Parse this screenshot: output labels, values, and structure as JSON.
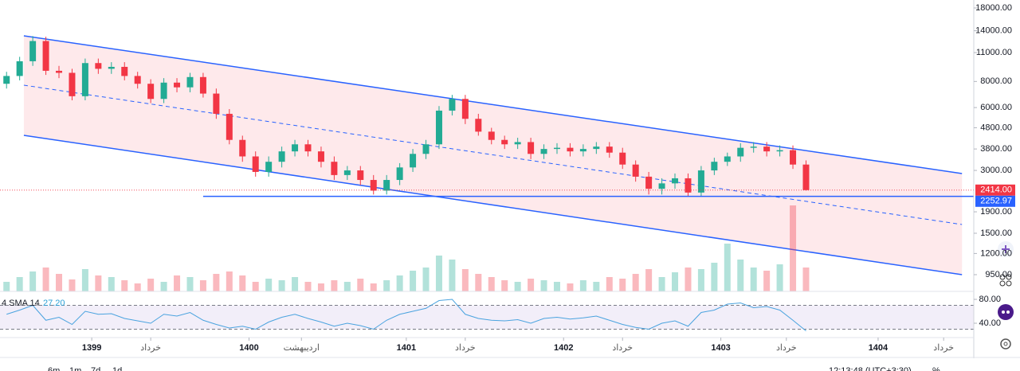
{
  "chart_data": {
    "type": "candlestick",
    "x": [
      -6.5,
      -5.5,
      -4.5,
      -3.5,
      -2.5,
      -1.5,
      -0.5,
      0.5,
      1.5,
      2.5,
      3.5,
      4.5,
      5.5,
      6.5,
      7.5,
      8.5,
      9.5,
      10.5,
      11.5,
      12.5,
      13.5,
      14.5,
      15.5,
      16.5,
      17.5,
      18.5,
      19.5,
      20.5,
      21.5,
      22.5,
      23.5,
      24.5,
      25.5,
      26.5,
      27.5,
      28.5,
      29.5,
      30.5,
      31.5,
      32.5,
      33.5,
      34.5,
      35.5,
      36.5,
      37.5,
      38.5,
      39.5,
      40.5,
      41.5,
      42.5,
      43.5,
      44.5,
      45.5,
      46.5,
      47.5,
      48.5,
      49.5,
      50.5,
      51.5,
      52.5,
      53.5,
      54.5
    ],
    "open": [
      7800,
      8500,
      10000,
      12500,
      9000,
      8800,
      6800,
      9800,
      9200,
      9400,
      8500,
      7800,
      6600,
      7900,
      7500,
      8400,
      7000,
      5600,
      4200,
      3500,
      2950,
      3300,
      3700,
      4000,
      3700,
      3300,
      2850,
      3000,
      2700,
      2400,
      2700,
      3100,
      3600,
      4000,
      5800,
      6600,
      5300,
      4600,
      4200,
      4000,
      4100,
      3600,
      3800,
      3850,
      3700,
      3800,
      3900,
      3650,
      3200,
      2800,
      2450,
      2600,
      2750,
      2350,
      3000,
      3300,
      3500,
      3850,
      3900,
      3700,
      3750,
      3200
    ],
    "high": [
      8900,
      10500,
      13200,
      13100,
      9500,
      9200,
      10300,
      10300,
      9900,
      9900,
      8900,
      8200,
      8300,
      8300,
      8800,
      8800,
      7400,
      5900,
      4400,
      3700,
      3500,
      3900,
      4200,
      4200,
      3900,
      3500,
      3150,
      3150,
      2850,
      2850,
      3250,
      3800,
      4200,
      6100,
      6900,
      6900,
      5600,
      4800,
      4400,
      4300,
      4300,
      4000,
      4050,
      4050,
      4000,
      4100,
      4100,
      3850,
      3350,
      2950,
      2750,
      2900,
      2900,
      3150,
      3450,
      3650,
      4050,
      4100,
      4100,
      3950,
      3950,
      3350
    ],
    "low": [
      7400,
      8100,
      9500,
      8600,
      8300,
      6500,
      6500,
      8700,
      8700,
      8100,
      7400,
      6300,
      6300,
      7100,
      7100,
      6700,
      5300,
      4000,
      3300,
      2800,
      2800,
      3100,
      3500,
      3500,
      3100,
      2700,
      2700,
      2550,
      2300,
      2300,
      2550,
      2950,
      3400,
      3800,
      5500,
      5000,
      4400,
      4000,
      3800,
      3800,
      3400,
      3400,
      3600,
      3500,
      3500,
      3600,
      3450,
      3050,
      2650,
      2300,
      2300,
      2450,
      2250,
      2250,
      2850,
      3150,
      3300,
      3650,
      3500,
      3500,
      3050,
      2400
    ],
    "close": [
      8500,
      10000,
      12500,
      9000,
      8800,
      6800,
      9800,
      9200,
      9400,
      8500,
      7800,
      6600,
      7900,
      7500,
      8400,
      7000,
      5600,
      4200,
      3500,
      2950,
      3300,
      3700,
      4000,
      3700,
      3300,
      2850,
      3000,
      2700,
      2400,
      2700,
      3100,
      3600,
      4000,
      5800,
      6600,
      5300,
      4600,
      4200,
      4000,
      4100,
      3600,
      3800,
      3850,
      3700,
      3800,
      3900,
      3650,
      3200,
      2800,
      2450,
      2600,
      2750,
      2350,
      3000,
      3300,
      3500,
      3850,
      3900,
      3700,
      3750,
      3200,
      2414
    ],
    "up_color": "#22ab94",
    "down_color": "#f23645",
    "xlim": [
      -7,
      67.3
    ],
    "xticks": [
      {
        "value": 0,
        "label": "1399"
      },
      {
        "value": 4.5,
        "label": "خرداد"
      },
      {
        "value": 12,
        "label": "1400"
      },
      {
        "value": 16,
        "label": "اردیبهشت"
      },
      {
        "value": 24,
        "label": "1401"
      },
      {
        "value": 28.5,
        "label": "خرداد"
      },
      {
        "value": 36,
        "label": "1402"
      },
      {
        "value": 40.5,
        "label": "خرداد"
      },
      {
        "value": 48,
        "label": "1403"
      },
      {
        "value": 53,
        "label": "خرداد"
      },
      {
        "value": 60,
        "label": "1404"
      },
      {
        "value": 65,
        "label": "خرداد"
      }
    ],
    "ylim": [
      790,
      19650
    ],
    "log_scale": true,
    "yticks": [
      {
        "value": 18000,
        "label": "18000.00"
      },
      {
        "value": 14000,
        "label": "14000.00"
      },
      {
        "value": 11000,
        "label": "11000.00"
      },
      {
        "value": 8000,
        "label": "8000.00"
      },
      {
        "value": 6000,
        "label": "6000.00"
      },
      {
        "value": 4800,
        "label": "4800.00"
      },
      {
        "value": 3800,
        "label": "3800.00"
      },
      {
        "value": 3000,
        "label": "3000.00"
      },
      {
        "value": 1900,
        "label": "1900.00"
      },
      {
        "value": 1500,
        "label": "1500.00"
      },
      {
        "value": 1200,
        "label": "1200.00"
      },
      {
        "value": 950,
        "label": "950.00"
      }
    ],
    "last_price": {
      "value": 2414,
      "label": "2414.00"
    },
    "level": 2252.97,
    "level_start": 8.5,
    "channel": {
      "x": [
        -5.18,
        66.4
      ],
      "upper": [
        13240,
        2898
      ],
      "middle": [
        7680,
        1652
      ],
      "lower": [
        4418,
        950
      ],
      "color": "#2962ff"
    },
    "volume": [
      12,
      18,
      25,
      30,
      22,
      15,
      28,
      20,
      18,
      14,
      10,
      16,
      12,
      20,
      18,
      14,
      22,
      25,
      20,
      12,
      16,
      14,
      18,
      12,
      10,
      14,
      12,
      16,
      10,
      14,
      20,
      26,
      30,
      45,
      40,
      28,
      22,
      18,
      14,
      12,
      16,
      14,
      12,
      10,
      14,
      12,
      18,
      16,
      22,
      28,
      18,
      24,
      30,
      28,
      36,
      60,
      40,
      30,
      26,
      34,
      108,
      30
    ],
    "rsi": {
      "label": "4 SMA 14",
      "values": [
        55,
        62,
        70,
        45,
        50,
        38,
        60,
        55,
        56,
        48,
        44,
        40,
        55,
        52,
        58,
        45,
        38,
        32,
        35,
        30,
        42,
        50,
        55,
        48,
        42,
        35,
        40,
        36,
        30,
        45,
        55,
        60,
        65,
        78,
        80,
        55,
        48,
        45,
        44,
        46,
        40,
        48,
        50,
        47,
        49,
        52,
        45,
        38,
        33,
        30,
        40,
        44,
        35,
        58,
        62,
        72,
        74,
        66,
        68,
        62,
        45,
        27.2
      ],
      "last_label": "27.20",
      "ylim": [
        16,
        90.7
      ],
      "yticks": [
        {
          "value": 80,
          "label": "80.00"
        },
        {
          "value": 40,
          "label": "40.00"
        }
      ],
      "band": [
        30,
        70
      ],
      "color": "#4aa3df"
    }
  },
  "toolbar": {
    "intervals": [
      "6m",
      "1m",
      "7d",
      "1d"
    ],
    "clock": "12:13:48 (UTC+3:30)",
    "percent": "%"
  }
}
